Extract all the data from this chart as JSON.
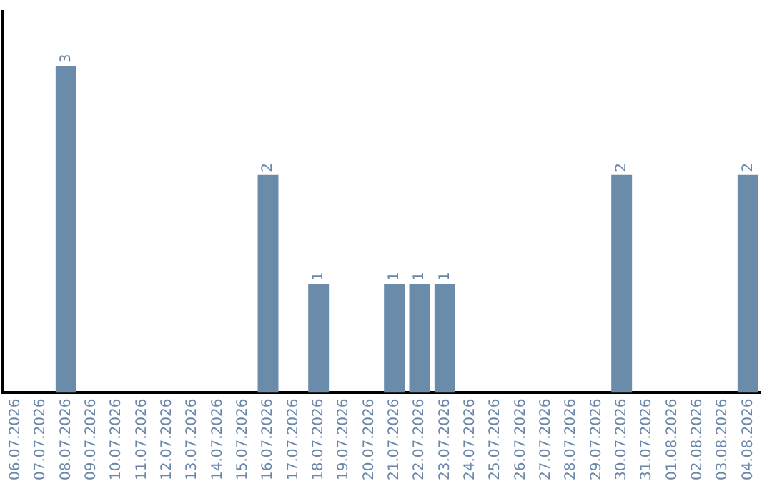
{
  "chart_data": {
    "type": "bar",
    "categories": [
      "06.07.2026",
      "07.07.2026",
      "08.07.2026",
      "09.07.2026",
      "10.07.2026",
      "11.07.2026",
      "12.07.2026",
      "13.07.2026",
      "14.07.2026",
      "15.07.2026",
      "16.07.2026",
      "17.07.2026",
      "18.07.2026",
      "19.07.2026",
      "20.07.2026",
      "21.07.2026",
      "22.07.2026",
      "23.07.2026",
      "24.07.2026",
      "25.07.2026",
      "26.07.2026",
      "27.07.2026",
      "28.07.2026",
      "29.07.2026",
      "30.07.2026",
      "31.07.2026",
      "01.08.2026",
      "02.08.2026",
      "03.08.2026",
      "04.08.2026"
    ],
    "values": [
      0,
      0,
      3,
      0,
      0,
      0,
      0,
      0,
      0,
      0,
      2,
      0,
      1,
      0,
      0,
      1,
      1,
      1,
      0,
      0,
      0,
      0,
      0,
      0,
      2,
      0,
      0,
      0,
      0,
      2
    ],
    "value_labels": [
      null,
      null,
      "3",
      null,
      null,
      null,
      null,
      null,
      null,
      null,
      "2",
      null,
      "1",
      null,
      null,
      "1",
      "1",
      "1",
      null,
      null,
      null,
      null,
      null,
      null,
      "2",
      null,
      null,
      null,
      null,
      "2"
    ],
    "color": "#6a8caa",
    "tick_labels": "x",
    "grid": false,
    "legend": false
  }
}
